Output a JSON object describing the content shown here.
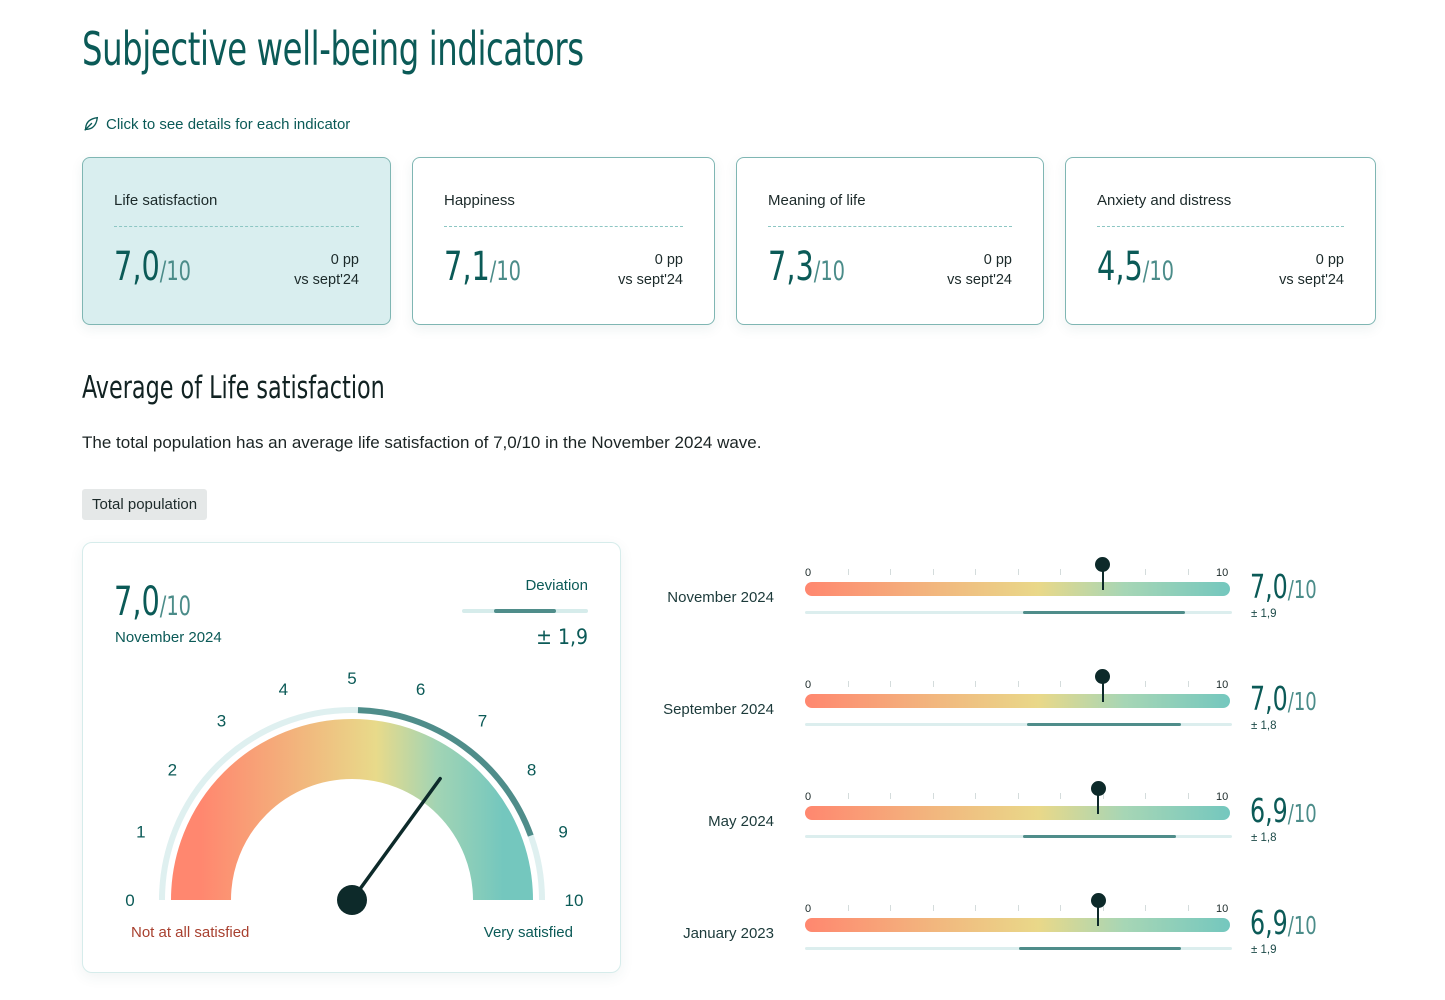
{
  "page": {
    "title": "Subjective well-being indicators",
    "hint": "Click to see details for each indicator"
  },
  "cards": [
    {
      "label": "Life satisfaction",
      "value": "7,0",
      "denominator": "/10",
      "delta": "0 pp",
      "delta_ref": "vs sept'24",
      "active": true
    },
    {
      "label": "Happiness",
      "value": "7,1",
      "denominator": "/10",
      "delta": "0 pp",
      "delta_ref": "vs sept'24",
      "active": false
    },
    {
      "label": "Meaning of life",
      "value": "7,3",
      "denominator": "/10",
      "delta": "0 pp",
      "delta_ref": "vs sept'24",
      "active": false
    },
    {
      "label": "Anxiety and distress",
      "value": "4,5",
      "denominator": "/10",
      "delta": "0 pp",
      "delta_ref": "vs sept'24",
      "active": false
    }
  ],
  "section": {
    "title": "Average of Life satisfaction",
    "description": "The total population has an average life satisfaction of 7,0/10 in the November 2024 wave.",
    "filter": "Total population"
  },
  "gauge": {
    "value": "7,0",
    "value_num": 7.0,
    "denominator": "/10",
    "wave": "November 2024",
    "deviation_label": "Deviation",
    "deviation": "± 1,9",
    "deviation_num": 1.9,
    "scale_ticks": [
      "0",
      "1",
      "2",
      "3",
      "4",
      "5",
      "6",
      "7",
      "8",
      "9",
      "10"
    ],
    "min_label": "Not at all satisfied",
    "max_label": "Very satisfied",
    "colors": {
      "low": "#ff876f",
      "mid": "#e9d889",
      "high": "#74c7be",
      "accent": "#4f8d8a",
      "needle": "#0d2a2a"
    }
  },
  "timeline": {
    "axis_min": "0",
    "axis_max": "10",
    "rows": [
      {
        "wave": "November 2024",
        "value": "7,0",
        "value_num": 7.0,
        "denominator": "/10",
        "deviation": "± 1,9",
        "deviation_num": 1.9
      },
      {
        "wave": "September 2024",
        "value": "7,0",
        "value_num": 7.0,
        "denominator": "/10",
        "deviation": "± 1,8",
        "deviation_num": 1.8
      },
      {
        "wave": "May 2024",
        "value": "6,9",
        "value_num": 6.9,
        "denominator": "/10",
        "deviation": "± 1,8",
        "deviation_num": 1.8
      },
      {
        "wave": "January 2023",
        "value": "6,9",
        "value_num": 6.9,
        "denominator": "/10",
        "deviation": "± 1,9",
        "deviation_num": 1.9
      }
    ]
  }
}
